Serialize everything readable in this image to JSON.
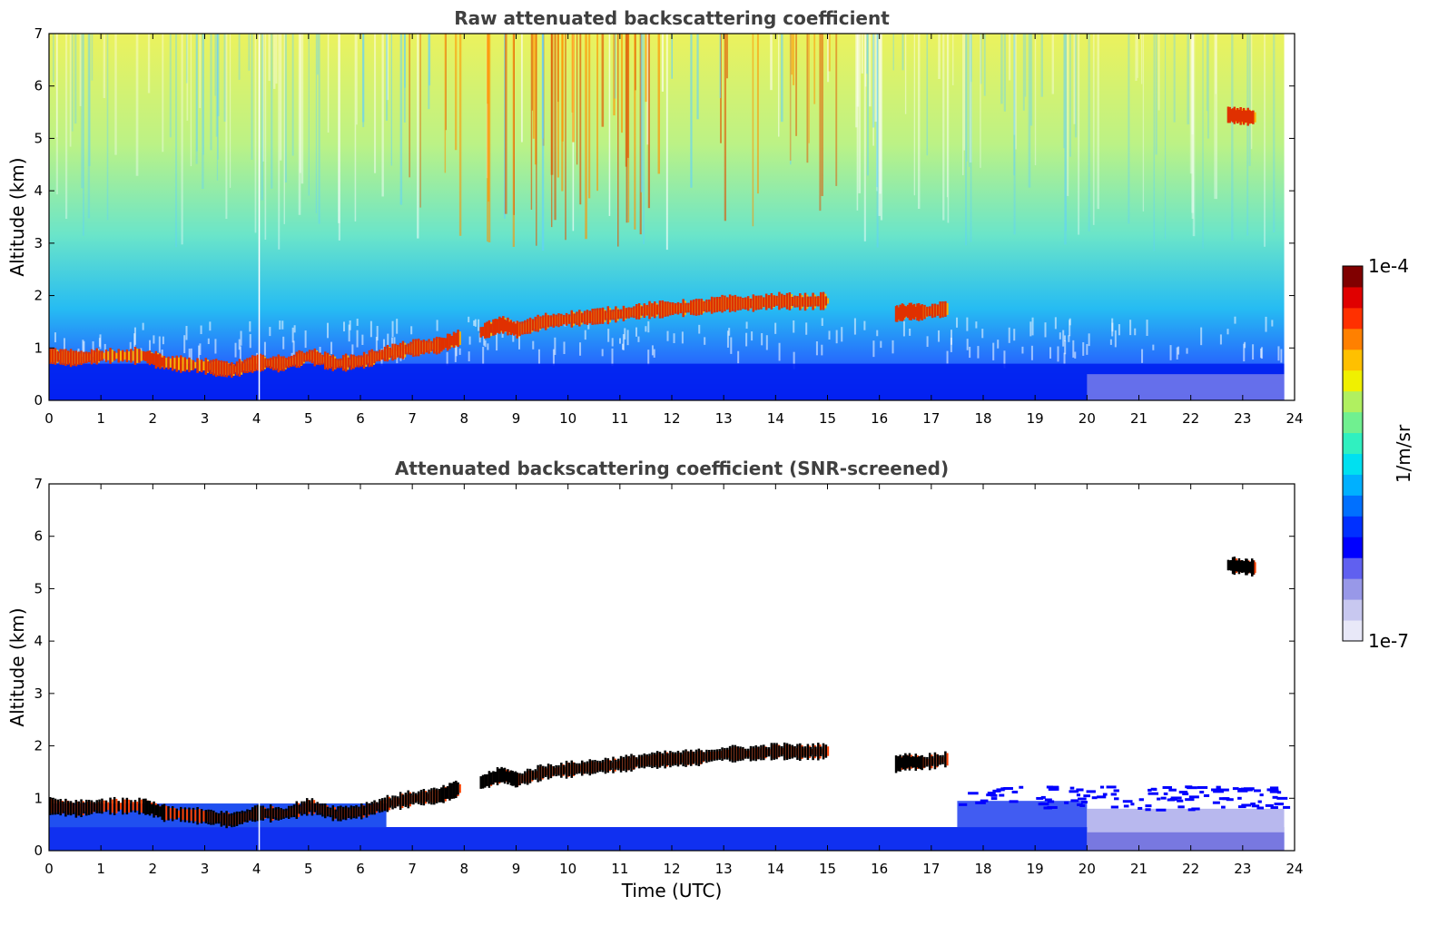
{
  "chart_data": [
    {
      "type": "heatmap",
      "title": "Raw attenuated backscattering coefficient",
      "xlabel": "",
      "ylabel": "Altitude (km)",
      "xlim": [
        0,
        24
      ],
      "ylim": [
        0,
        7
      ],
      "x_ticks": [
        "0",
        "1",
        "2",
        "3",
        "4",
        "5",
        "6",
        "7",
        "8",
        "9",
        "10",
        "11",
        "12",
        "13",
        "14",
        "15",
        "16",
        "17",
        "18",
        "19",
        "20",
        "21",
        "22",
        "23",
        "24"
      ],
      "y_ticks": [
        "0",
        "1",
        "2",
        "3",
        "4",
        "5",
        "6",
        "7"
      ],
      "data_end_time": 23.8,
      "features": [
        {
          "name": "boundary-layer-cloud",
          "points": [
            [
              0,
              0.85
            ],
            [
              0.5,
              0.8
            ],
            [
              1,
              0.85
            ],
            [
              1.8,
              0.85
            ],
            [
              2.2,
              0.72
            ],
            [
              3,
              0.65
            ],
            [
              3.5,
              0.58
            ],
            [
              4,
              0.72
            ],
            [
              4.5,
              0.7
            ],
            [
              5,
              0.85
            ],
            [
              5.5,
              0.7
            ],
            [
              6,
              0.75
            ],
            [
              6.5,
              0.9
            ],
            [
              7,
              1.0
            ],
            [
              7.5,
              1.05
            ],
            [
              7.9,
              1.2
            ]
          ]
        },
        {
          "name": "elevated-layer",
          "points": [
            [
              8.3,
              1.3
            ],
            [
              8.7,
              1.45
            ],
            [
              9,
              1.35
            ],
            [
              9.5,
              1.5
            ],
            [
              10,
              1.55
            ],
            [
              10.5,
              1.6
            ],
            [
              11,
              1.65
            ],
            [
              11.5,
              1.72
            ],
            [
              12,
              1.75
            ],
            [
              12.5,
              1.78
            ],
            [
              13,
              1.85
            ],
            [
              13.5,
              1.85
            ],
            [
              14,
              1.9
            ],
            [
              14.5,
              1.88
            ],
            [
              15,
              1.9
            ]
          ]
        },
        {
          "name": "cloud-16-17h",
          "points": [
            [
              16.3,
              1.65
            ],
            [
              16.5,
              1.7
            ],
            [
              16.8,
              1.68
            ],
            [
              17.3,
              1.75
            ]
          ]
        },
        {
          "name": "cloud-23h",
          "points": [
            [
              22.7,
              5.45
            ],
            [
              23.0,
              5.42
            ],
            [
              23.2,
              5.4
            ]
          ]
        }
      ]
    },
    {
      "type": "heatmap",
      "title": "Attenuated backscattering coefficient (SNR-screened)",
      "xlabel": "Time (UTC)",
      "ylabel": "Altitude (km)",
      "xlim": [
        0,
        24
      ],
      "ylim": [
        0,
        7
      ],
      "x_ticks": [
        "0",
        "1",
        "2",
        "3",
        "4",
        "5",
        "6",
        "7",
        "8",
        "9",
        "10",
        "11",
        "12",
        "13",
        "14",
        "15",
        "16",
        "17",
        "18",
        "19",
        "20",
        "21",
        "22",
        "23",
        "24"
      ],
      "y_ticks": [
        "0",
        "1",
        "2",
        "3",
        "4",
        "5",
        "6",
        "7"
      ],
      "data_end_time": 23.8
    }
  ],
  "colorbar": {
    "min_label": "1e-7",
    "max_label": "1e-4",
    "unit_label": "1/m/sr",
    "scale": "log",
    "colors": [
      "#e8e8f8",
      "#c8c8f0",
      "#9898e8",
      "#6060f0",
      "#0000ff",
      "#0030ff",
      "#0070ff",
      "#00b0ff",
      "#00e0f0",
      "#30f0c0",
      "#70f090",
      "#b0f060",
      "#f0f000",
      "#ffc000",
      "#ff8000",
      "#ff3000",
      "#e00000",
      "#800000"
    ]
  }
}
